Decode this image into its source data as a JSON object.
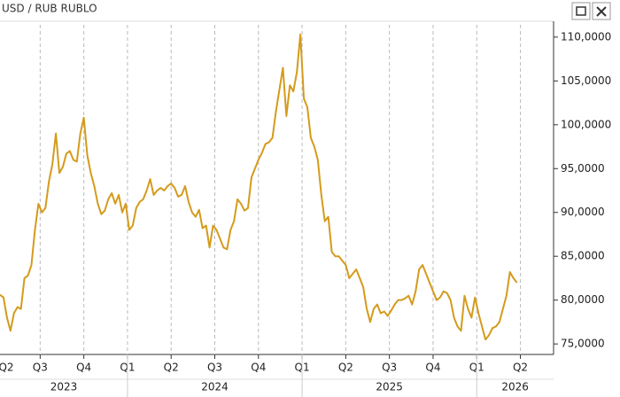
{
  "chart_data": {
    "type": "line",
    "title": "USD / RUB RUBLO",
    "color": "#d49b1c",
    "x": [
      2023.27,
      2023.29,
      2023.31,
      2023.33,
      2023.35,
      2023.37,
      2023.39,
      2023.41,
      2023.43,
      2023.45,
      2023.47,
      2023.49,
      2023.51,
      2023.53,
      2023.55,
      2023.57,
      2023.59,
      2023.61,
      2023.63,
      2023.65,
      2023.67,
      2023.69,
      2023.71,
      2023.73,
      2023.75,
      2023.77,
      2023.79,
      2023.81,
      2023.83,
      2023.85,
      2023.87,
      2023.89,
      2023.91,
      2023.93,
      2023.95,
      2023.97,
      2023.99,
      2024.01,
      2024.03,
      2024.05,
      2024.07,
      2024.09,
      2024.11,
      2024.13,
      2024.15,
      2024.17,
      2024.19,
      2024.21,
      2024.23,
      2024.25,
      2024.27,
      2024.29,
      2024.31,
      2024.33,
      2024.35,
      2024.37,
      2024.39,
      2024.41,
      2024.43,
      2024.45,
      2024.47,
      2024.49,
      2024.51,
      2024.53,
      2024.55,
      2024.57,
      2024.59,
      2024.61,
      2024.63,
      2024.65,
      2024.67,
      2024.69,
      2024.71,
      2024.73,
      2024.75,
      2024.77,
      2024.79,
      2024.81,
      2024.83,
      2024.85,
      2024.87,
      2024.89,
      2024.91,
      2024.93,
      2024.95,
      2024.97,
      2024.99,
      2025.01,
      2025.03,
      2025.05,
      2025.07,
      2025.09,
      2025.11,
      2025.13,
      2025.15,
      2025.17,
      2025.19,
      2025.21,
      2025.23,
      2025.25,
      2025.27,
      2025.29,
      2025.31,
      2025.33,
      2025.35,
      2025.37,
      2025.39,
      2025.41,
      2025.43,
      2025.45,
      2025.47,
      2025.49,
      2025.51,
      2025.53,
      2025.55,
      2025.57,
      2025.59,
      2025.61,
      2025.63,
      2025.65,
      2025.67,
      2025.69,
      2025.71,
      2025.73,
      2025.75,
      2025.77,
      2025.79,
      2025.81,
      2025.83,
      2025.85,
      2025.87,
      2025.89,
      2025.91,
      2025.93,
      2025.95,
      2025.97,
      2025.99,
      2026.01,
      2026.03,
      2026.05,
      2026.07,
      2026.09,
      2026.11,
      2026.13,
      2026.15,
      2026.17,
      2026.19,
      2026.21,
      2026.23
    ],
    "values": [
      80.6,
      80.3,
      78,
      76.5,
      78.5,
      79.2,
      79,
      82.5,
      82.8,
      84,
      88,
      91,
      90,
      90.5,
      93.5,
      95.5,
      99,
      94.5,
      95.2,
      96.7,
      97,
      96,
      95.8,
      99,
      100.8,
      96.5,
      94.5,
      93,
      91,
      89.8,
      90.2,
      91.5,
      92.2,
      91,
      92,
      90,
      91,
      88,
      88.5,
      90.5,
      91.2,
      91.5,
      92.5,
      93.8,
      92,
      92.5,
      92.8,
      92.5,
      93,
      93.3,
      92.8,
      91.8,
      92,
      93,
      91.2,
      90,
      89.5,
      90.3,
      88.2,
      88.5,
      86,
      88.5,
      88,
      87,
      86,
      85.8,
      88,
      89,
      91.5,
      91,
      90.2,
      90.5,
      94,
      95,
      96,
      96.8,
      97.8,
      98,
      98.5,
      101.5,
      104,
      106.5,
      101,
      104.5,
      103.8,
      106,
      110.3,
      103,
      102,
      98.5,
      97.5,
      96,
      92,
      89,
      89.5,
      85.5,
      85,
      85,
      84.5,
      84,
      82.5,
      83,
      83.5,
      82.5,
      81.5,
      79,
      77.5,
      79,
      79.5,
      78.5,
      78.7,
      78.2,
      78.8,
      79.5,
      80,
      80,
      80.2,
      80.5,
      79.5,
      81,
      83.5,
      84,
      83,
      82,
      81,
      80,
      80.3,
      81,
      80.8,
      80,
      78,
      77,
      76.5,
      80.5,
      79,
      78,
      80.3,
      78.5,
      77,
      75.5,
      76,
      76.8,
      77,
      77.5,
      79,
      80.5,
      83.2,
      82.5,
      82
    ],
    "xlim": [
      2023.27,
      2026.44
    ],
    "xticks": [
      {
        "value": 2023.25,
        "label": "Q2"
      },
      {
        "value": 2023.5,
        "label": "Q3"
      },
      {
        "value": 2023.75,
        "label": "Q4"
      },
      {
        "value": 2024,
        "label": "Q1"
      },
      {
        "value": 2024.25,
        "label": "Q2"
      },
      {
        "value": 2024.5,
        "label": "Q3"
      },
      {
        "value": 2024.75,
        "label": "Q4"
      },
      {
        "value": 2025,
        "label": "Q1"
      },
      {
        "value": 2025.25,
        "label": "Q2"
      },
      {
        "value": 2025.5,
        "label": "Q3"
      },
      {
        "value": 2025.75,
        "label": "Q4"
      },
      {
        "value": 2026,
        "label": "Q1"
      },
      {
        "value": 2026.25,
        "label": "Q2"
      }
    ],
    "xgroups": [
      2023,
      2024,
      2025,
      2026
    ],
    "ylim": [
      73.8,
      111.4
    ],
    "yticks": [
      {
        "value": 75,
        "label": "75,0000"
      },
      {
        "value": 80,
        "label": "80,0000"
      },
      {
        "value": 85,
        "label": "85,0000"
      },
      {
        "value": 90,
        "label": "90,0000"
      },
      {
        "value": 95,
        "label": "95,0000"
      },
      {
        "value": 100,
        "label": "100,0000"
      },
      {
        "value": 105,
        "label": "105,0000"
      },
      {
        "value": 110,
        "label": "110,0000"
      }
    ],
    "grid": true
  }
}
